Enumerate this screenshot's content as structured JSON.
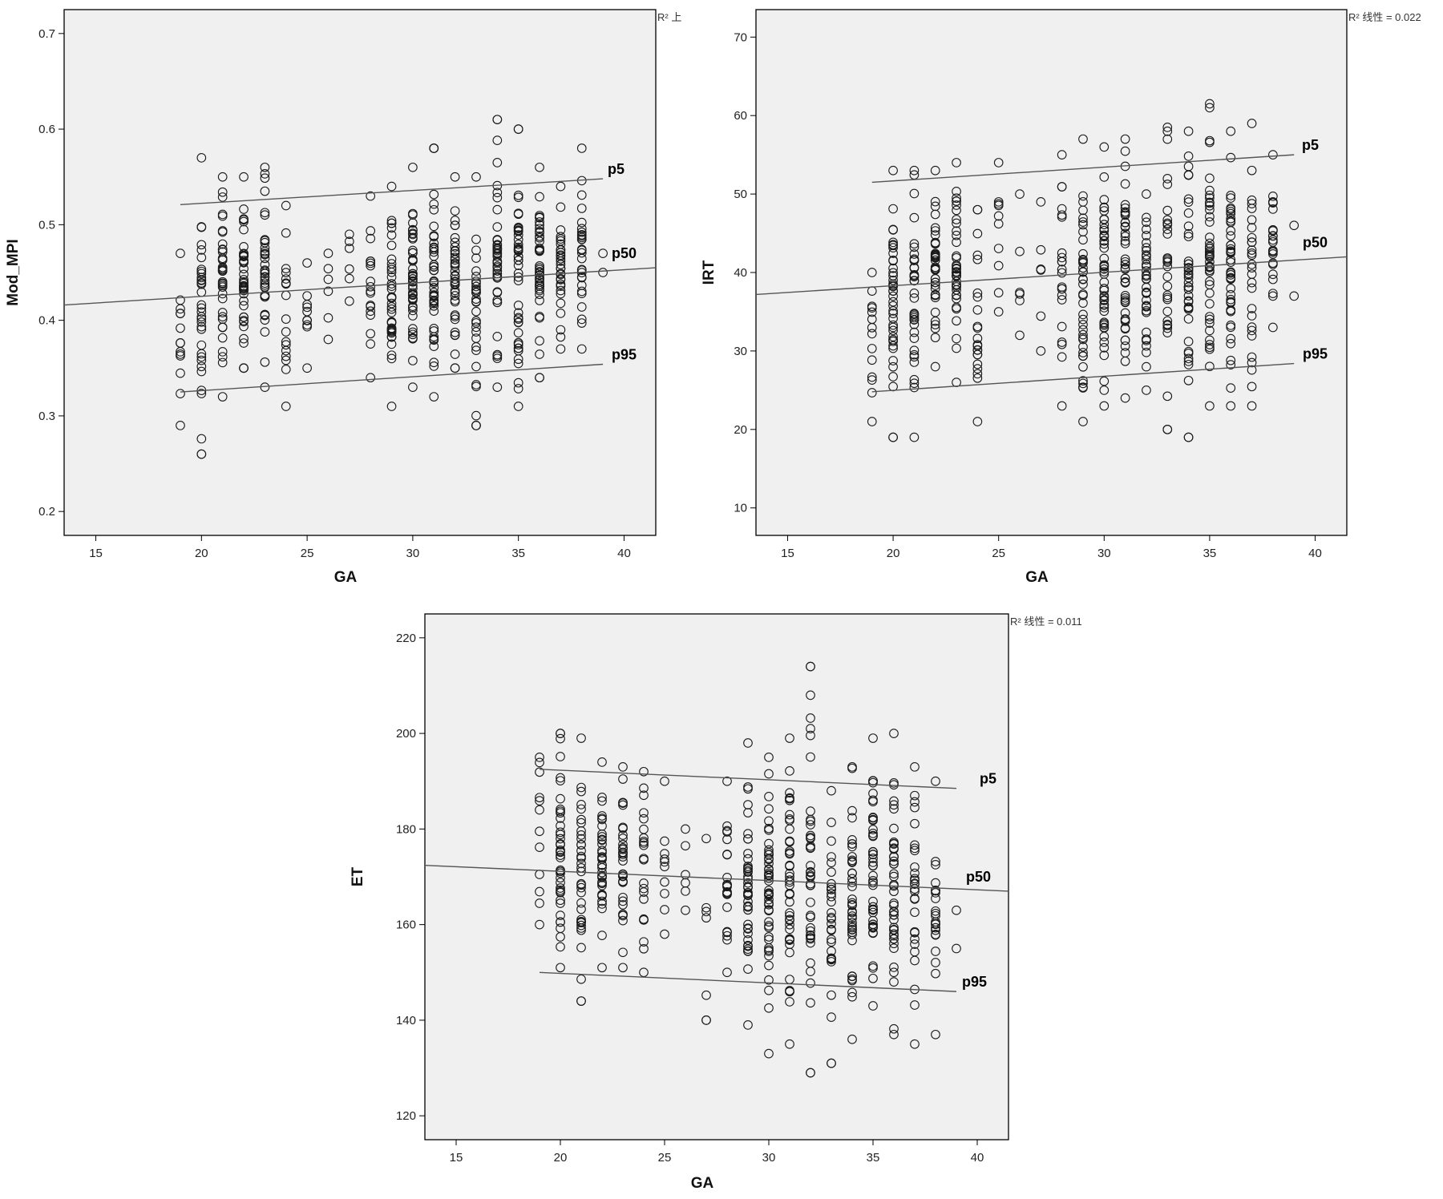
{
  "chart_data": [
    {
      "type": "scatter",
      "xlabel": "GA",
      "ylabel": "Mod_MPI",
      "xlim": [
        13.5,
        41.5
      ],
      "ylim": [
        0.175,
        0.725
      ],
      "xticks": [
        15,
        20,
        25,
        30,
        35,
        40
      ],
      "yticks": [
        0.2,
        0.3,
        0.4,
        0.5,
        0.6,
        0.7
      ],
      "ytick_labels": [
        "0.2",
        "0.3",
        "0.4",
        "0.5",
        "0.6",
        "0.7"
      ],
      "r2_label": "R² 上",
      "x": [
        19,
        20,
        21,
        22,
        23,
        24,
        25,
        26,
        27,
        28,
        29,
        30,
        31,
        32,
        33,
        34,
        35,
        36,
        37,
        38,
        39
      ],
      "y_low": [
        0.29,
        0.26,
        0.32,
        0.35,
        0.33,
        0.31,
        0.35,
        0.38,
        0.42,
        0.34,
        0.31,
        0.33,
        0.32,
        0.35,
        0.29,
        0.33,
        0.31,
        0.34,
        0.37,
        0.37,
        0.45
      ],
      "y_high": [
        0.47,
        0.57,
        0.55,
        0.55,
        0.56,
        0.52,
        0.46,
        0.47,
        0.49,
        0.53,
        0.54,
        0.56,
        0.58,
        0.55,
        0.55,
        0.61,
        0.6,
        0.56,
        0.54,
        0.58,
        0.47
      ],
      "density": [
        14,
        34,
        36,
        40,
        38,
        18,
        10,
        6,
        6,
        18,
        38,
        46,
        44,
        40,
        30,
        40,
        46,
        44,
        30,
        28,
        2
      ],
      "outliers": [
        {
          "x": 20,
          "y": 0.26
        },
        {
          "x": 33,
          "y": 0.29
        },
        {
          "x": 34,
          "y": 0.61
        },
        {
          "x": 35,
          "y": 0.6
        },
        {
          "x": 31,
          "y": 0.58
        }
      ],
      "percentile_lines": [
        {
          "label": "p5",
          "x": [
            19,
            39
          ],
          "y": [
            0.521,
            0.548
          ]
        },
        {
          "label": "p50",
          "x": [
            13.5,
            41.5
          ],
          "y": [
            0.416,
            0.455
          ]
        },
        {
          "label": "p95",
          "x": [
            19,
            39
          ],
          "y": [
            0.325,
            0.354
          ]
        }
      ]
    },
    {
      "type": "scatter",
      "xlabel": "GA",
      "ylabel": "IRT",
      "xlim": [
        13.5,
        41.5
      ],
      "ylim": [
        6.5,
        73.5
      ],
      "xticks": [
        15,
        20,
        25,
        30,
        35,
        40
      ],
      "yticks": [
        10,
        20,
        30,
        40,
        50,
        60,
        70
      ],
      "ytick_labels": [
        "10",
        "20",
        "30",
        "40",
        "50",
        "60",
        "70"
      ],
      "r2_label": "R² 线性 = 0.022",
      "x": [
        19,
        20,
        21,
        22,
        23,
        24,
        25,
        26,
        27,
        28,
        29,
        30,
        31,
        32,
        33,
        34,
        35,
        36,
        37,
        38,
        39
      ],
      "y_low": [
        21,
        19,
        19,
        28,
        26,
        21,
        35,
        32,
        30,
        23,
        21,
        23,
        24,
        25,
        20,
        19,
        23,
        23,
        23,
        33,
        37
      ],
      "y_high": [
        40,
        53,
        53,
        53,
        54,
        48,
        54,
        50,
        49,
        55,
        57,
        56,
        57,
        50,
        58,
        58,
        61,
        58,
        59,
        55,
        46
      ],
      "density": [
        14,
        40,
        36,
        40,
        38,
        22,
        10,
        6,
        6,
        22,
        40,
        48,
        46,
        36,
        30,
        40,
        46,
        44,
        28,
        24,
        2
      ],
      "outliers": [
        {
          "x": 35,
          "y": 61.5
        },
        {
          "x": 33,
          "y": 58.5
        },
        {
          "x": 34,
          "y": 19
        },
        {
          "x": 20,
          "y": 19
        }
      ],
      "percentile_lines": [
        {
          "label": "p5",
          "x": [
            19,
            39
          ],
          "y": [
            51.5,
            55.0
          ]
        },
        {
          "label": "p50",
          "x": [
            13.5,
            41.5
          ],
          "y": [
            37.2,
            42.0
          ]
        },
        {
          "label": "p95",
          "x": [
            19,
            39
          ],
          "y": [
            24.8,
            28.4
          ]
        }
      ]
    },
    {
      "type": "scatter",
      "xlabel": "GA",
      "ylabel": "ET",
      "xlim": [
        13.5,
        41.5
      ],
      "ylim": [
        115,
        225
      ],
      "xticks": [
        15,
        20,
        25,
        30,
        35,
        40
      ],
      "yticks": [
        120,
        140,
        160,
        180,
        200,
        220
      ],
      "ytick_labels": [
        "120",
        "140",
        "160",
        "180",
        "200",
        "220"
      ],
      "r2_label": "R² 线性 = 0.011",
      "x": [
        19,
        20,
        21,
        22,
        23,
        24,
        25,
        26,
        27,
        28,
        29,
        30,
        31,
        32,
        33,
        34,
        35,
        36,
        37,
        38,
        39
      ],
      "y_low": [
        160,
        151,
        144,
        151,
        151,
        150,
        158,
        163,
        140,
        150,
        139,
        133,
        135,
        129,
        131,
        136,
        143,
        137,
        135,
        137,
        155
      ],
      "y_high": [
        195,
        200,
        199,
        194,
        193,
        192,
        190,
        180,
        178,
        190,
        198,
        195,
        199,
        214,
        188,
        193,
        199,
        200,
        193,
        190,
        163
      ],
      "density": [
        12,
        40,
        34,
        36,
        34,
        22,
        10,
        6,
        6,
        22,
        40,
        48,
        46,
        40,
        30,
        40,
        46,
        44,
        28,
        22,
        2
      ],
      "outliers": [
        {
          "x": 32,
          "y": 214
        },
        {
          "x": 32,
          "y": 208
        },
        {
          "x": 32,
          "y": 129
        },
        {
          "x": 33,
          "y": 131
        },
        {
          "x": 27,
          "y": 140
        },
        {
          "x": 21,
          "y": 144
        }
      ],
      "percentile_lines": [
        {
          "label": "p5",
          "x": [
            19,
            39
          ],
          "y": [
            192.5,
            188.5
          ]
        },
        {
          "label": "p50",
          "x": [
            13.5,
            41.5
          ],
          "y": [
            172.4,
            167.0
          ]
        },
        {
          "label": "p95",
          "x": [
            19,
            39
          ],
          "y": [
            150.0,
            146.0
          ]
        }
      ]
    }
  ]
}
